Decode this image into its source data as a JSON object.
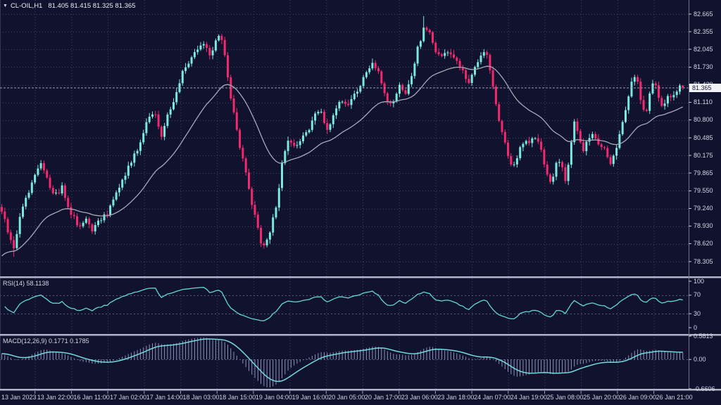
{
  "window": {
    "dropdown_icon": "▼",
    "symbol": "CL-OIL,H1",
    "quote_line": "81.405 81.415 81.325 81.365"
  },
  "colors": {
    "background": "#10122e",
    "grid": "#3f4468",
    "bull": "#7ce8de",
    "bear": "#f3286f",
    "ma_line": "#a7aab8",
    "rsi_line": "#62d8d0",
    "macd_signal": "#74dade",
    "macd_histogram": "#8d92b8",
    "separator": "#b0b4c8",
    "axis_text": "#d4d7e4",
    "axis_border": "#70748e",
    "current_price_line": "#9ba0b6",
    "price_tag_bg": "#f2f3f7",
    "price_tag_text": "#14163a"
  },
  "price_axis": {
    "labels": [
      "82.665",
      "82.355",
      "82.045",
      "81.730",
      "81.420",
      "81.110",
      "80.800",
      "80.485",
      "80.175",
      "79.865",
      "79.550",
      "79.240",
      "78.930",
      "78.620",
      "78.305"
    ],
    "current_price": "81.365"
  },
  "time_axis": {
    "labels": [
      "13 Jan 2023",
      "13 Jan 22:00",
      "16 Jan 11:00",
      "17 Jan 02:00",
      "17 Jan 14:00",
      "18 Jan 03:00",
      "18 Jan 15:00",
      "19 Jan 04:00",
      "19 Jan 16:00",
      "20 Jan 05:00",
      "20 Jan 17:00",
      "23 Jan 06:00",
      "23 Jan 18:00",
      "24 Jan 07:00",
      "24 Jan 19:00",
      "25 Jan 08:00",
      "25 Jan 20:00",
      "26 Jan 09:00",
      "26 Jan 21:00"
    ]
  },
  "rsi": {
    "label": "RSI(14)",
    "value": "58.1138",
    "period": 14,
    "axis_labels": [
      "100",
      "70",
      "30",
      "0"
    ],
    "levels": [
      70,
      30
    ]
  },
  "macd": {
    "label": "MACD(12,26,9)",
    "values": "0.1771 0.1785",
    "fast": 12,
    "slow": 26,
    "signal": 9,
    "main_value": 0.1771,
    "signal_value": 0.1785,
    "axis_labels": [
      "0.5813",
      "0.00",
      "-0.6606"
    ],
    "scale_max": 0.5813,
    "scale_min": -0.6606
  },
  "chart_data": {
    "type": "candlestick",
    "symbol": "CL-OIL",
    "timeframe": "H1",
    "title": "CL-OIL,H1 81.405 81.415 81.325 81.365",
    "ylim": [
      78.305,
      82.665
    ],
    "y_gridline_step": 0.31,
    "x_gridline_interval_hours": 12,
    "visible_range": {
      "start": "13 Jan 2023",
      "end": "26 Jan 2023 23:00"
    },
    "candle_count": 227,
    "last_ohlc": {
      "open": 81.405,
      "high": 81.415,
      "low": 81.325,
      "close": 81.365
    },
    "session_high": 82.63,
    "session_low": 78.39,
    "overlays": [
      {
        "type": "moving-average",
        "period": 30,
        "color": "#a7aab8"
      }
    ],
    "indicator_values": {
      "rsi": 58.1138,
      "macd_main": 0.1771,
      "macd_signal": 0.1785
    },
    "price_path": [
      [
        0,
        79.3
      ],
      [
        6,
        79.05
      ],
      [
        13,
        78.7
      ],
      [
        20,
        78.55
      ],
      [
        28,
        79.1
      ],
      [
        38,
        79.45
      ],
      [
        48,
        79.8
      ],
      [
        58,
        80.05
      ],
      [
        68,
        79.7
      ],
      [
        78,
        79.45
      ],
      [
        88,
        79.62
      ],
      [
        100,
        79.18
      ],
      [
        112,
        78.92
      ],
      [
        122,
        79.1
      ],
      [
        132,
        78.85
      ],
      [
        142,
        79.05
      ],
      [
        152,
        79.12
      ],
      [
        163,
        79.45
      ],
      [
        175,
        79.78
      ],
      [
        188,
        80.12
      ],
      [
        200,
        80.38
      ],
      [
        212,
        80.9
      ],
      [
        220,
        80.95
      ],
      [
        228,
        80.48
      ],
      [
        238,
        80.9
      ],
      [
        248,
        81.2
      ],
      [
        258,
        81.6
      ],
      [
        268,
        81.78
      ],
      [
        278,
        82.02
      ],
      [
        290,
        82.1
      ],
      [
        300,
        81.95
      ],
      [
        310,
        82.32
      ],
      [
        318,
        82.1
      ],
      [
        326,
        81.35
      ],
      [
        334,
        80.78
      ],
      [
        342,
        80.22
      ],
      [
        350,
        79.85
      ],
      [
        358,
        79.32
      ],
      [
        366,
        78.9
      ],
      [
        372,
        78.55
      ],
      [
        378,
        78.62
      ],
      [
        386,
        78.95
      ],
      [
        394,
        79.42
      ],
      [
        402,
        80.15
      ],
      [
        410,
        80.45
      ],
      [
        418,
        80.32
      ],
      [
        428,
        80.48
      ],
      [
        438,
        80.62
      ],
      [
        448,
        80.88
      ],
      [
        456,
        80.95
      ],
      [
        464,
        80.62
      ],
      [
        472,
        80.82
      ],
      [
        482,
        81.1
      ],
      [
        492,
        81.05
      ],
      [
        502,
        81.22
      ],
      [
        512,
        81.42
      ],
      [
        520,
        81.65
      ],
      [
        528,
        81.78
      ],
      [
        536,
        81.7
      ],
      [
        544,
        81.35
      ],
      [
        552,
        81.05
      ],
      [
        560,
        81.12
      ],
      [
        568,
        81.4
      ],
      [
        576,
        81.3
      ],
      [
        584,
        81.55
      ],
      [
        592,
        82.0
      ],
      [
        602,
        82.42
      ],
      [
        610,
        82.35
      ],
      [
        618,
        82.05
      ],
      [
        626,
        81.9
      ],
      [
        634,
        82.05
      ],
      [
        642,
        81.95
      ],
      [
        650,
        81.78
      ],
      [
        658,
        81.62
      ],
      [
        666,
        81.45
      ],
      [
        674,
        81.72
      ],
      [
        682,
        81.95
      ],
      [
        690,
        82.0
      ],
      [
        698,
        81.5
      ],
      [
        706,
        80.95
      ],
      [
        714,
        80.5
      ],
      [
        722,
        80.15
      ],
      [
        728,
        79.95
      ],
      [
        736,
        80.2
      ],
      [
        744,
        80.45
      ],
      [
        752,
        80.4
      ],
      [
        760,
        80.5
      ],
      [
        768,
        80.3
      ],
      [
        774,
        80.0
      ],
      [
        780,
        79.62
      ],
      [
        786,
        79.85
      ],
      [
        792,
        80.2
      ],
      [
        798,
        79.95
      ],
      [
        804,
        79.72
      ],
      [
        810,
        80.3
      ],
      [
        816,
        80.8
      ],
      [
        822,
        80.45
      ],
      [
        828,
        80.22
      ],
      [
        834,
        80.45
      ],
      [
        842,
        80.55
      ],
      [
        850,
        80.4
      ],
      [
        858,
        80.3
      ],
      [
        866,
        80.05
      ],
      [
        872,
        80.15
      ],
      [
        880,
        80.55
      ],
      [
        888,
        80.9
      ],
      [
        894,
        81.3
      ],
      [
        900,
        81.6
      ],
      [
        906,
        81.45
      ],
      [
        912,
        81.05
      ],
      [
        918,
        80.95
      ],
      [
        924,
        81.35
      ],
      [
        930,
        81.5
      ],
      [
        936,
        81.15
      ],
      [
        942,
        81.05
      ],
      [
        948,
        81.2
      ],
      [
        954,
        81.15
      ],
      [
        960,
        81.28
      ],
      [
        966,
        81.45
      ],
      [
        972,
        81.365
      ]
    ]
  }
}
